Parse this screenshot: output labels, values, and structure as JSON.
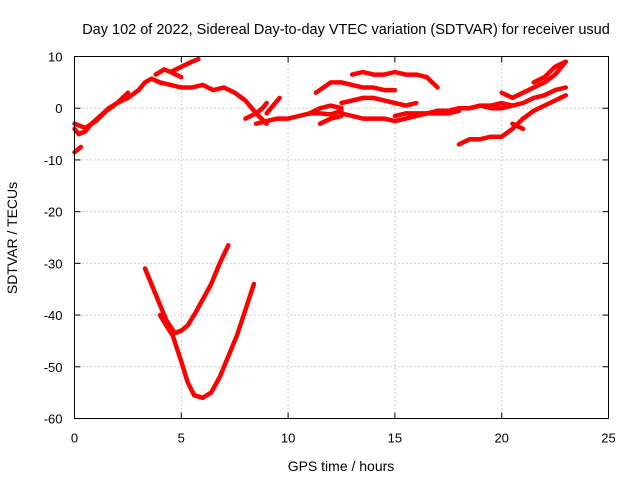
{
  "chart_data": {
    "type": "scatter",
    "title": "Day 102 of 2022, Sidereal Day-to-day VTEC variation (SDTVAR) for receiver usud",
    "xlabel": "GPS time / hours",
    "ylabel": "SDTVAR / TECUs",
    "xlim": [
      0,
      25
    ],
    "ylim": [
      -60,
      10
    ],
    "xticks": [
      0,
      5,
      10,
      15,
      20,
      25
    ],
    "yticks": [
      -60,
      -50,
      -40,
      -30,
      -20,
      -10,
      0,
      10
    ],
    "grid": true,
    "legend": "none",
    "color": "#ff0000",
    "series": [
      {
        "name": "trace-1",
        "x": [
          0,
          0.2,
          0.5,
          0.8,
          1.2,
          1.6,
          2.0,
          2.5
        ],
        "y": [
          -4,
          -5,
          -4.5,
          -3,
          -1.5,
          0,
          1,
          3
        ]
      },
      {
        "name": "trace-2",
        "x": [
          0,
          0.3
        ],
        "y": [
          -8.5,
          -7.5
        ]
      },
      {
        "name": "trace-3",
        "x": [
          0,
          0.5,
          1.0,
          1.5,
          2.0,
          2.5,
          3.0,
          3.3,
          3.6,
          4.0
        ],
        "y": [
          -3,
          -3.8,
          -2.5,
          -0.5,
          1,
          2,
          3.5,
          5,
          5.7,
          5
        ]
      },
      {
        "name": "trace-4",
        "x": [
          3.8,
          4.2,
          4.5,
          5.0
        ],
        "y": [
          6.5,
          7.5,
          7,
          6
        ]
      },
      {
        "name": "trace-5",
        "x": [
          4.0,
          4.5,
          5.0,
          5.5,
          6.0,
          6.5,
          7.0,
          7.5,
          8.0,
          8.5,
          9.0
        ],
        "y": [
          5,
          4.5,
          4,
          4,
          4.5,
          3.5,
          4,
          3,
          1.5,
          -1,
          -3
        ]
      },
      {
        "name": "trace-6",
        "x": [
          4.5,
          5.0,
          5.5,
          5.8
        ],
        "y": [
          7,
          8,
          9,
          9.5
        ]
      },
      {
        "name": "trace-7",
        "x": [
          8.0,
          8.5,
          8.8,
          9.0
        ],
        "y": [
          -2,
          -1,
          0,
          1
        ]
      },
      {
        "name": "trace-8",
        "x": [
          9.0,
          9.3,
          9.6
        ],
        "y": [
          -1,
          0.5,
          2
        ]
      },
      {
        "name": "trace-9",
        "x": [
          8.5,
          9.0,
          9.5,
          10.0,
          10.5,
          11.0,
          11.5,
          12.0,
          12.5
        ],
        "y": [
          -3,
          -2.5,
          -2,
          -2,
          -1.5,
          -1,
          -1,
          -1.2,
          -0.5
        ]
      },
      {
        "name": "trace-10",
        "x": [
          11.0,
          11.5,
          12.0,
          12.5
        ],
        "y": [
          -1,
          0,
          0.5,
          0
        ]
      },
      {
        "name": "trace-11",
        "x": [
          11.5,
          12.0,
          12.5
        ],
        "y": [
          -3,
          -2,
          -1.5
        ]
      },
      {
        "name": "trace-12",
        "x": [
          11.3,
          12.0,
          12.5,
          13.0,
          13.5,
          14.0,
          14.5,
          15.0
        ],
        "y": [
          3,
          5,
          5,
          4.5,
          4,
          4,
          3.5,
          3.5
        ]
      },
      {
        "name": "trace-13",
        "x": [
          12.5,
          13.0,
          13.5,
          14.0,
          14.5,
          15.0,
          15.5,
          16.0
        ],
        "y": [
          1,
          1.5,
          2,
          2,
          1.5,
          1,
          0.5,
          1
        ]
      },
      {
        "name": "trace-14",
        "x": [
          13.0,
          13.5,
          14.0,
          14.5,
          15.0,
          15.5,
          16.0,
          16.5,
          17.0
        ],
        "y": [
          6.5,
          7,
          6.5,
          6.5,
          7,
          6.5,
          6.5,
          6,
          4
        ]
      },
      {
        "name": "trace-15",
        "x": [
          12.5,
          13.0,
          13.5,
          14.0,
          14.5,
          15.0,
          15.5,
          16.0,
          16.5,
          17.0,
          17.5,
          18.0
        ],
        "y": [
          -1,
          -1.5,
          -2,
          -2,
          -2,
          -2.5,
          -2,
          -1.5,
          -1,
          -1,
          -1,
          -0.5
        ]
      },
      {
        "name": "trace-16",
        "x": [
          15.0,
          15.5,
          16.0,
          16.5,
          17.0,
          17.5,
          18.0,
          18.5,
          19.0,
          19.5,
          20.0,
          20.5
        ],
        "y": [
          -1.5,
          -1,
          -1,
          -1,
          -0.5,
          -0.5,
          0,
          0,
          0.5,
          0,
          0,
          0.5
        ]
      },
      {
        "name": "trace-17",
        "x": [
          18.0,
          18.5,
          19.0,
          19.5,
          20.0,
          20.5,
          21.0,
          21.5,
          22.0,
          22.5,
          23.0
        ],
        "y": [
          0,
          0,
          0.5,
          0.5,
          1,
          0.5,
          1,
          2,
          2.5,
          3.5,
          4
        ]
      },
      {
        "name": "trace-18",
        "x": [
          20.0,
          20.5,
          21.0,
          21.5,
          22.0,
          22.5,
          23.0
        ],
        "y": [
          3,
          2,
          3,
          4,
          5,
          6.5,
          9
        ]
      },
      {
        "name": "trace-19",
        "x": [
          21.5,
          22.0,
          22.5,
          23.0
        ],
        "y": [
          5,
          6,
          8,
          9
        ]
      },
      {
        "name": "trace-20",
        "x": [
          18.0,
          18.5,
          19.0,
          19.5,
          20.0,
          20.5,
          21.0
        ],
        "y": [
          -7,
          -6,
          -6,
          -5.5,
          -5.5,
          -4,
          -2
        ]
      },
      {
        "name": "trace-21",
        "x": [
          20.5,
          21.0
        ],
        "y": [
          -3,
          -4
        ]
      },
      {
        "name": "trace-22",
        "x": [
          21.0,
          21.5,
          22.0,
          22.5,
          23.0
        ],
        "y": [
          -2,
          -0.5,
          0.5,
          1.5,
          2.5
        ]
      },
      {
        "name": "trace-23",
        "x": [
          3.3,
          3.6,
          4.0,
          4.3,
          4.7,
          5.0,
          5.3,
          5.6,
          6.0,
          6.4,
          6.8,
          7.2
        ],
        "y": [
          -31,
          -34,
          -38,
          -41,
          -43.5,
          -43,
          -42,
          -40,
          -37,
          -34,
          -30,
          -26.5
        ]
      },
      {
        "name": "trace-24",
        "x": [
          4.0,
          4.3,
          4.6,
          5.0,
          5.3,
          5.6,
          6.0,
          6.4,
          6.8,
          7.2,
          7.6,
          8.0,
          8.4
        ],
        "y": [
          -40,
          -42,
          -44,
          -49,
          -53,
          -55.5,
          -56,
          -55,
          -52,
          -48,
          -44,
          -39,
          -34
        ]
      }
    ]
  }
}
